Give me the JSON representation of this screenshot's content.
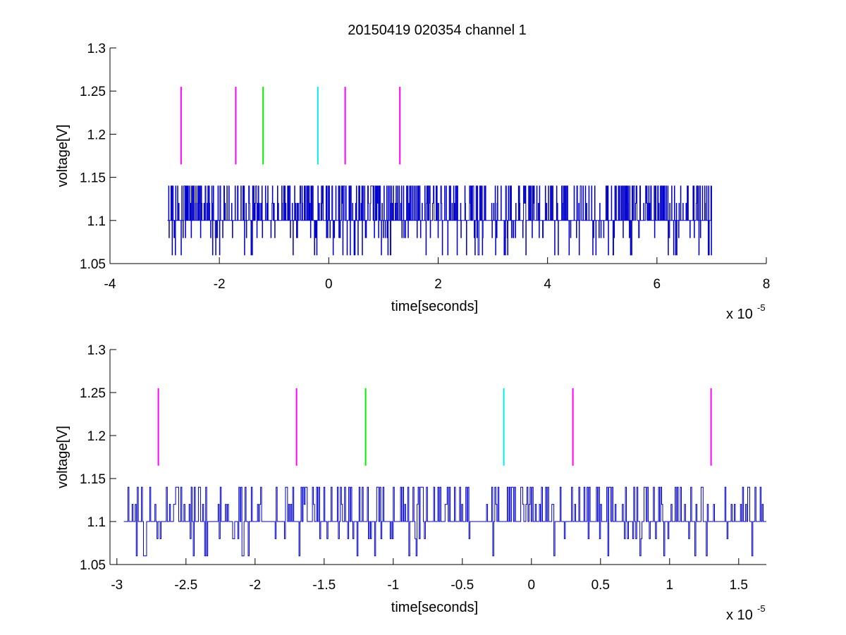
{
  "figure": {
    "title": "20150419 020354 channel 1"
  },
  "chart_data": [
    {
      "type": "line",
      "title": "20150419 020354 channel 1",
      "xlabel": "time[seconds]",
      "ylabel": "voltage[V]",
      "x_multiplier_label": "x 10",
      "x_multiplier_exponent": "-5",
      "xlim": [
        -4,
        8
      ],
      "ylim": [
        1.05,
        1.3
      ],
      "xticks": [
        -4,
        -2,
        0,
        2,
        4,
        6,
        8
      ],
      "xtick_labels": [
        "-4",
        "-2",
        "0",
        "2",
        "4",
        "6",
        "8"
      ],
      "yticks": [
        1.05,
        1.1,
        1.15,
        1.2,
        1.25,
        1.3
      ],
      "ytick_labels": [
        "1.05",
        "1.1",
        "1.15",
        "1.2",
        "1.25",
        "1.3"
      ],
      "grid": false,
      "signal": {
        "color": "#0000cc",
        "x_start": -2.95,
        "x_end": 7.0,
        "levels": [
          1.06,
          1.08,
          1.1,
          1.12,
          1.14
        ],
        "baseline": 1.1
      },
      "markers": [
        {
          "x": -2.7,
          "y_range": [
            1.165,
            1.255
          ],
          "color": "#ff00ff"
        },
        {
          "x": -1.7,
          "y_range": [
            1.165,
            1.255
          ],
          "color": "#ff00ff"
        },
        {
          "x": -1.2,
          "y_range": [
            1.165,
            1.255
          ],
          "color": "#00ee00"
        },
        {
          "x": -0.2,
          "y_range": [
            1.165,
            1.255
          ],
          "color": "#00eeee"
        },
        {
          "x": 0.3,
          "y_range": [
            1.165,
            1.255
          ],
          "color": "#ff00ff"
        },
        {
          "x": 1.3,
          "y_range": [
            1.165,
            1.255
          ],
          "color": "#ff00ff"
        }
      ]
    },
    {
      "type": "line",
      "title": "",
      "xlabel": "time[seconds]",
      "ylabel": "voltage[V]",
      "x_multiplier_label": "x 10",
      "x_multiplier_exponent": "-5",
      "xlim": [
        -3.05,
        1.7
      ],
      "ylim": [
        1.05,
        1.3
      ],
      "xticks": [
        -3,
        -2.5,
        -2,
        -1.5,
        -1,
        -0.5,
        0,
        0.5,
        1,
        1.5
      ],
      "xtick_labels": [
        "-3",
        "-2.5",
        "-2",
        "-1.5",
        "-1",
        "-0.5",
        "0",
        "0.5",
        "1",
        "1.5"
      ],
      "yticks": [
        1.05,
        1.1,
        1.15,
        1.2,
        1.25,
        1.3
      ],
      "ytick_labels": [
        "1.05",
        "1.1",
        "1.15",
        "1.2",
        "1.25",
        "1.3"
      ],
      "grid": false,
      "signal": {
        "color": "#0000cc",
        "x_start": -2.95,
        "x_end": 1.7,
        "levels": [
          1.06,
          1.08,
          1.1,
          1.12,
          1.14
        ],
        "baseline": 1.1
      },
      "markers": [
        {
          "x": -2.7,
          "y_range": [
            1.165,
            1.255
          ],
          "color": "#ff00ff"
        },
        {
          "x": -1.7,
          "y_range": [
            1.165,
            1.255
          ],
          "color": "#ff00ff"
        },
        {
          "x": -1.2,
          "y_range": [
            1.165,
            1.255
          ],
          "color": "#00ee00"
        },
        {
          "x": -0.2,
          "y_range": [
            1.165,
            1.255
          ],
          "color": "#00eeee"
        },
        {
          "x": 0.3,
          "y_range": [
            1.165,
            1.255
          ],
          "color": "#ff00ff"
        },
        {
          "x": 1.3,
          "y_range": [
            1.165,
            1.255
          ],
          "color": "#ff00ff"
        }
      ]
    }
  ]
}
